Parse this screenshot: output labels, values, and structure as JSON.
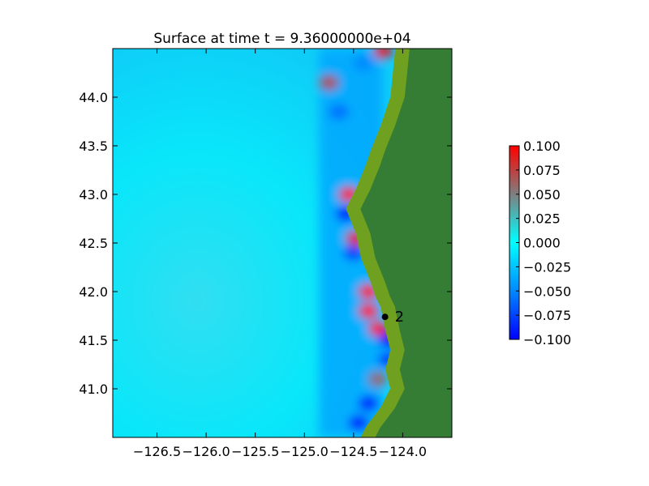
{
  "chart_data": {
    "type": "heatmap",
    "title": "Surface at time t = 9.36000000e+04",
    "xlabel": "",
    "ylabel": "",
    "xlim": [
      -126.95,
      -123.5
    ],
    "ylim": [
      40.5,
      44.5
    ],
    "x_ticks": [
      {
        "value": -126.5,
        "label": "−126.5"
      },
      {
        "value": -126.0,
        "label": "−126.0"
      },
      {
        "value": -125.5,
        "label": "−125.5"
      },
      {
        "value": -125.0,
        "label": "−125.0"
      },
      {
        "value": -124.5,
        "label": "−124.5"
      },
      {
        "value": -124.0,
        "label": "−124.0"
      }
    ],
    "y_ticks": [
      {
        "value": 41.0,
        "label": "41.0"
      },
      {
        "value": 41.5,
        "label": "41.5"
      },
      {
        "value": 42.0,
        "label": "42.0"
      },
      {
        "value": 42.5,
        "label": "42.5"
      },
      {
        "value": 43.0,
        "label": "43.0"
      },
      {
        "value": 43.5,
        "label": "43.5"
      },
      {
        "value": 44.0,
        "label": "44.0"
      }
    ],
    "colorbar": {
      "min": -0.1,
      "max": 0.1,
      "ticks": [
        {
          "value": 0.1,
          "label": "0.100"
        },
        {
          "value": 0.075,
          "label": "0.075"
        },
        {
          "value": 0.05,
          "label": "0.050"
        },
        {
          "value": 0.025,
          "label": "0.025"
        },
        {
          "value": 0.0,
          "label": "0.000"
        },
        {
          "value": -0.025,
          "label": "−0.025"
        },
        {
          "value": -0.05,
          "label": "−0.050"
        },
        {
          "value": -0.075,
          "label": "−0.075"
        },
        {
          "value": -0.1,
          "label": "−0.100"
        }
      ],
      "stops": [
        {
          "value": -0.1,
          "color": "#0000ff"
        },
        {
          "value": -0.05,
          "color": "#0088ff"
        },
        {
          "value": 0.0,
          "color": "#00ffff"
        },
        {
          "value": 0.05,
          "color": "#7f7f7f"
        },
        {
          "value": 0.1,
          "color": "#ff0000"
        }
      ]
    },
    "background_value": -0.01,
    "coastline": [
      [
        -123.5,
        44.5
      ],
      [
        -124.05,
        44.5
      ],
      [
        -124.07,
        44.3
      ],
      [
        -124.1,
        44.0
      ],
      [
        -124.2,
        43.7
      ],
      [
        -124.3,
        43.45
      ],
      [
        -124.35,
        43.3
      ],
      [
        -124.45,
        43.05
      ],
      [
        -124.55,
        42.85
      ],
      [
        -124.45,
        42.6
      ],
      [
        -124.4,
        42.35
      ],
      [
        -124.3,
        42.1
      ],
      [
        -124.25,
        41.95
      ],
      [
        -124.2,
        41.85
      ],
      [
        -124.15,
        41.6
      ],
      [
        -124.1,
        41.4
      ],
      [
        -124.15,
        41.2
      ],
      [
        -124.1,
        41.0
      ],
      [
        -124.2,
        40.8
      ],
      [
        -124.35,
        40.6
      ],
      [
        -124.4,
        40.5
      ],
      [
        -123.5,
        40.5
      ]
    ],
    "land_color": "#357d35",
    "shore_color": "#6fa01f",
    "anomalies": [
      {
        "x": -124.75,
        "y": 44.15,
        "value": 0.07
      },
      {
        "x": -124.55,
        "y": 43.0,
        "value": 0.1
      },
      {
        "x": -124.58,
        "y": 42.8,
        "value": -0.1
      },
      {
        "x": -124.48,
        "y": 42.55,
        "value": 0.09
      },
      {
        "x": -124.5,
        "y": 42.4,
        "value": -0.08
      },
      {
        "x": -124.35,
        "y": 42.0,
        "value": 0.1
      },
      {
        "x": -124.35,
        "y": 41.8,
        "value": 0.1
      },
      {
        "x": -124.25,
        "y": 41.62,
        "value": 0.1
      },
      {
        "x": -124.15,
        "y": 41.5,
        "value": -0.1
      },
      {
        "x": -124.15,
        "y": 41.3,
        "value": -0.08
      },
      {
        "x": -124.25,
        "y": 41.1,
        "value": 0.06
      },
      {
        "x": -124.35,
        "y": 40.85,
        "value": -0.1
      },
      {
        "x": -124.45,
        "y": 40.65,
        "value": -0.1
      },
      {
        "x": -124.65,
        "y": 43.85,
        "value": -0.06
      },
      {
        "x": -124.4,
        "y": 44.35,
        "value": -0.05
      },
      {
        "x": -124.2,
        "y": 44.47,
        "value": 0.09
      }
    ],
    "gauge": {
      "x": -124.18,
      "y": 41.74,
      "label": "2"
    }
  }
}
